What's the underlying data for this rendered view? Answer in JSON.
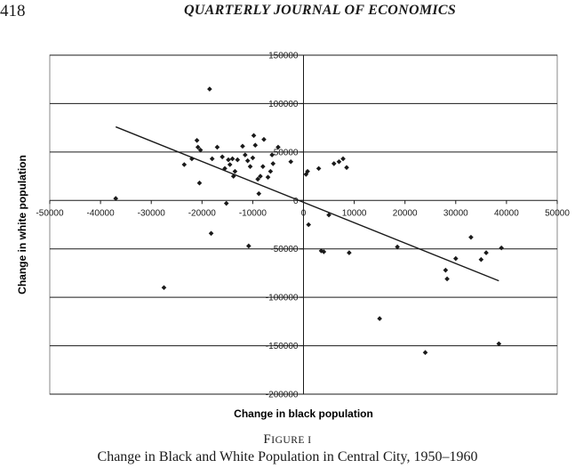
{
  "header": {
    "page_number": "418",
    "journal_title": "QUARTERLY JOURNAL OF ECONOMICS"
  },
  "figure": {
    "label_first": "F",
    "label_rest": "IGURE I",
    "caption": "Change in Black and White Population in Central City, 1950–1960"
  },
  "chart_data": {
    "type": "scatter",
    "xlabel": "Change in black population",
    "ylabel": "Change in white population",
    "xlim": [
      -50000,
      50000
    ],
    "ylim": [
      -200000,
      150000
    ],
    "x_ticks": [
      -50000,
      -40000,
      -30000,
      -20000,
      -10000,
      0,
      10000,
      20000,
      30000,
      40000,
      50000
    ],
    "y_ticks": [
      150000,
      100000,
      50000,
      0,
      -50000,
      -100000,
      -150000,
      -200000
    ],
    "x_tick_labels": [
      "-50000",
      "-40000",
      "-30000",
      "-20000",
      "-10000",
      "0",
      "10000",
      "20000",
      "30000",
      "40000",
      "50000"
    ],
    "y_tick_labels": [
      "150000",
      "100000",
      "50000",
      "0",
      "-50000",
      "-100000",
      "-150000",
      "-200000"
    ],
    "grid": "horizontal",
    "legend": "none",
    "point_color": "#1a1a1a",
    "trendline": {
      "x": [
        -37000,
        38500
      ],
      "y": [
        76000,
        -83000
      ]
    },
    "points": {
      "x": [
        -37000,
        -27500,
        -23500,
        -22000,
        -21000,
        -20800,
        -20500,
        -20300,
        -18500,
        -18200,
        -18000,
        -17000,
        -16000,
        -15500,
        -15200,
        -14800,
        -14500,
        -14000,
        -13800,
        -13500,
        -13000,
        -12000,
        -11500,
        -11000,
        -10800,
        -10500,
        -10000,
        -9800,
        -9500,
        -9000,
        -8800,
        -8500,
        -8000,
        -7800,
        -7000,
        -6500,
        -6200,
        -6000,
        -5000,
        -2500,
        500,
        800,
        3000,
        3500,
        5000,
        6000,
        7000,
        7800,
        8500,
        9000,
        1000,
        4000,
        15000,
        18500,
        24000,
        28000,
        28300,
        30000,
        33000,
        35000,
        36000,
        38500,
        39000
      ],
      "y": [
        2000,
        -90000,
        37000,
        43000,
        62000,
        55000,
        18000,
        52000,
        115000,
        -34000,
        43000,
        55000,
        45000,
        33000,
        -3000,
        42000,
        37000,
        43000,
        25000,
        30000,
        42000,
        56000,
        47000,
        41000,
        -47000,
        35000,
        44000,
        67000,
        57000,
        22000,
        7000,
        25000,
        35000,
        63000,
        24000,
        30000,
        47000,
        38000,
        55000,
        40000,
        27000,
        30000,
        33000,
        -52000,
        -15000,
        38000,
        40000,
        43000,
        34000,
        -54000,
        -25000,
        -53000,
        -122000,
        -48000,
        -157000,
        -72000,
        -81000,
        -60000,
        -38000,
        -61000,
        -54000,
        -148000,
        -49000
      ]
    }
  }
}
